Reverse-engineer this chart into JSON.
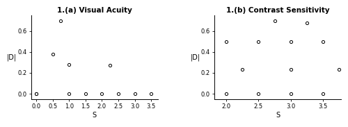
{
  "plot_a": {
    "title": "1.(a) Visual Acuity",
    "xlabel": "S",
    "ylabel": "|D|",
    "xlim": [
      -0.15,
      3.7
    ],
    "ylim": [
      -0.05,
      0.75
    ],
    "xticks": [
      0.0,
      0.5,
      1.0,
      1.5,
      2.0,
      2.5,
      3.0,
      3.5
    ],
    "yticks": [
      0.0,
      0.2,
      0.4,
      0.6
    ],
    "x": [
      0.0,
      0.0,
      0.5,
      0.75,
      1.0,
      1.0,
      1.5,
      2.0,
      2.25,
      2.5,
      3.0,
      3.5
    ],
    "y": [
      0.0,
      0.0,
      0.38,
      0.7,
      0.28,
      0.0,
      0.0,
      0.0,
      0.27,
      0.0,
      0.0,
      0.0
    ]
  },
  "plot_b": {
    "title": "1.(b) Contrast Sensitivity",
    "xlabel": "S",
    "ylabel": "|D|",
    "xlim": [
      1.82,
      3.78
    ],
    "ylim": [
      -0.05,
      0.75
    ],
    "xticks": [
      2.0,
      2.5,
      3.0,
      3.5
    ],
    "yticks": [
      0.0,
      0.2,
      0.4,
      0.6
    ],
    "x": [
      2.0,
      2.0,
      2.25,
      2.5,
      2.5,
      2.75,
      3.0,
      3.0,
      3.0,
      3.25,
      3.5,
      3.5,
      3.75
    ],
    "y": [
      0.0,
      0.5,
      0.23,
      0.5,
      0.0,
      0.7,
      0.5,
      0.23,
      0.0,
      0.68,
      0.5,
      0.0,
      0.23
    ]
  },
  "marker": "o",
  "marker_size": 3,
  "marker_facecolor": "white",
  "marker_edgecolor": "black",
  "marker_edgewidth": 0.7,
  "title_fontsize": 7.5,
  "label_fontsize": 7,
  "tick_fontsize": 6,
  "bg_color": "#ffffff"
}
